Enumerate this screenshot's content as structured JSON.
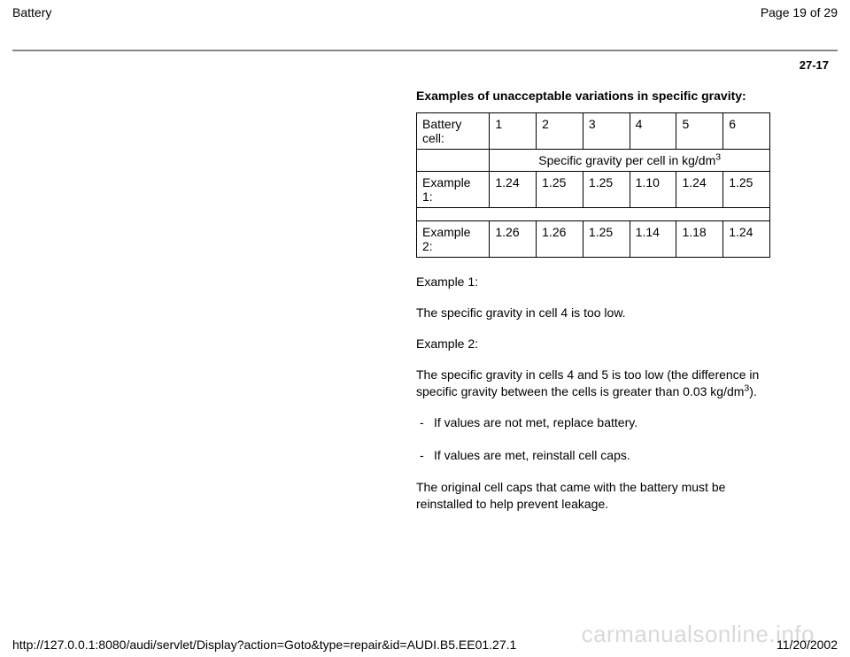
{
  "header": {
    "title": "Battery",
    "page_indicator": "Page 19 of 29"
  },
  "hr_color": "#888888",
  "section_number": "27-17",
  "heading": "Examples of unacceptable variations in specific gravity:",
  "table": {
    "row_header_label": "Battery cell:",
    "columns": [
      "1",
      "2",
      "3",
      "4",
      "5",
      "6"
    ],
    "span_label_prefix": "Specific gravity per cell in kg/dm",
    "span_label_sup": "3",
    "rows": [
      {
        "label": "Example 1:",
        "values": [
          "1.24",
          "1.25",
          "1.25",
          "1.10",
          "1.24",
          "1.25"
        ]
      },
      {
        "label": "Example 2:",
        "values": [
          "1.26",
          "1.26",
          "1.25",
          "1.14",
          "1.18",
          "1.24"
        ]
      }
    ]
  },
  "paragraphs": {
    "ex1_label": "Example 1:",
    "ex1_text": "The specific gravity in cell 4 is too low.",
    "ex2_label": "Example 2:",
    "ex2_text_prefix": "The specific gravity in cells 4 and 5 is too low (the difference in specific gravity between the cells is greater than 0.03 kg/dm",
    "ex2_sup": "3",
    "ex2_text_suffix": ")."
  },
  "bullets": [
    "If values are not met, replace battery.",
    "If values are met, reinstall cell caps."
  ],
  "closing": "The original cell caps that came with the battery must be reinstalled to help prevent leakage.",
  "footer": {
    "url": "http://127.0.0.1:8080/audi/servlet/Display?action=Goto&type=repair&id=AUDI.B5.EE01.27.1",
    "date": "11/20/2002"
  },
  "watermark": "carmanualsonline.info"
}
